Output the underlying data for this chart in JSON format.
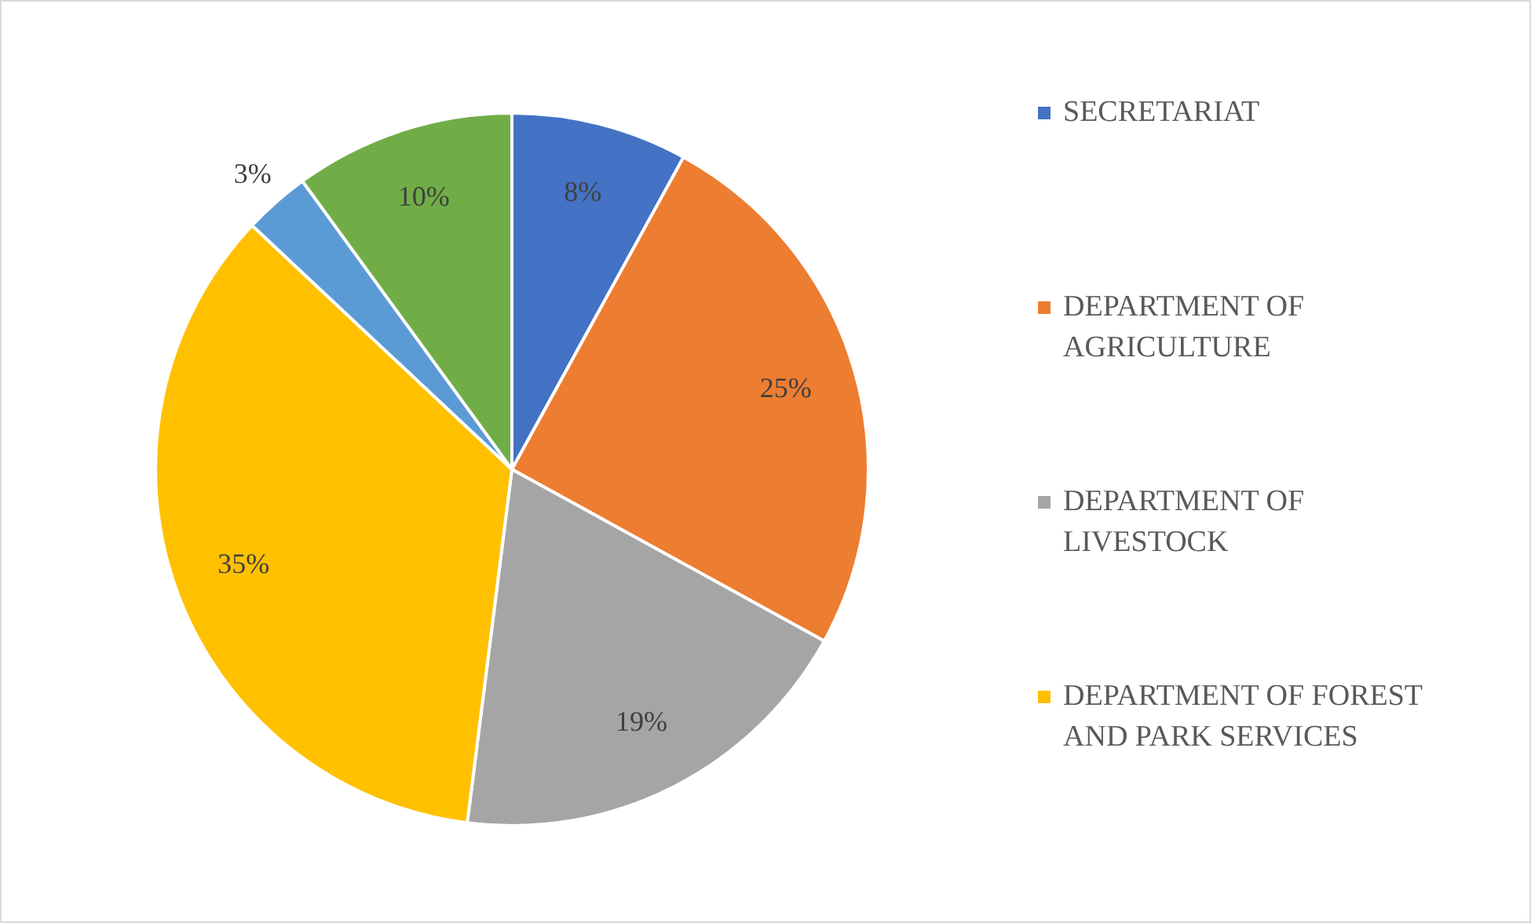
{
  "chart_data": {
    "type": "pie",
    "categories": [
      "SECRETARIAT",
      "DEPARTMENT OF AGRICULTURE",
      "DEPARTMENT OF LIVESTOCK",
      "DEPARTMENT OF FOREST AND PARK SERVICES",
      null,
      null
    ],
    "values": [
      8,
      25,
      19,
      35,
      3,
      10
    ],
    "colors": [
      "#4472c4",
      "#ed7d31",
      "#a5a5a5",
      "#ffc000",
      "#5b9bd5",
      "#70ad47"
    ],
    "value_labels": [
      "8%",
      "25%",
      "19%",
      "35%",
      "3%",
      "10%"
    ],
    "legend": "right"
  }
}
